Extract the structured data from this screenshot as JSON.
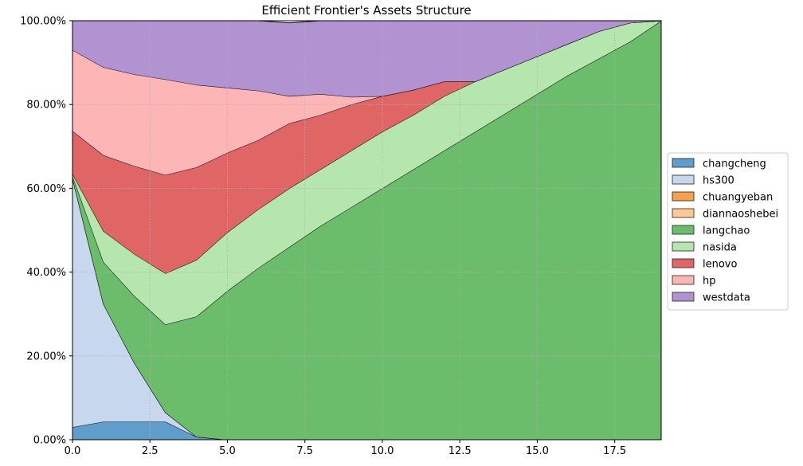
{
  "chart_data": {
    "type": "area",
    "stacked": true,
    "percent": true,
    "title": "Efficient Frontier's Assets Structure",
    "xlabel": "",
    "ylabel": "",
    "xlim": [
      0,
      19
    ],
    "ylim": [
      0,
      1
    ],
    "x_ticks": [
      0,
      2.5,
      5,
      7.5,
      10,
      12.5,
      15,
      17.5
    ],
    "x_tick_labels": [
      "0.0",
      "2.5",
      "5.0",
      "7.5",
      "10.0",
      "12.5",
      "15.0",
      "17.5"
    ],
    "y_ticks": [
      0,
      0.2,
      0.4,
      0.6,
      0.8,
      1.0
    ],
    "y_tick_labels": [
      "0.00%",
      "20.00%",
      "40.00%",
      "60.00%",
      "80.00%",
      "100.00%"
    ],
    "grid": true,
    "legend_position": "right",
    "x": [
      0,
      1,
      2,
      3,
      4,
      5,
      6,
      7,
      8,
      9,
      10,
      11,
      12,
      13,
      14,
      15,
      16,
      17,
      18,
      19
    ],
    "series": [
      {
        "name": "changcheng",
        "color": "#5f9ecb",
        "values": [
          0.03,
          0.043,
          0.043,
          0.043,
          0.007,
          0,
          0,
          0,
          0,
          0,
          0,
          0,
          0,
          0,
          0,
          0,
          0,
          0,
          0,
          0
        ]
      },
      {
        "name": "hs300",
        "color": "#c6d7ee",
        "values": [
          0.595,
          0.281,
          0.14,
          0.022,
          0,
          0,
          0,
          0,
          0,
          0,
          0,
          0,
          0,
          0,
          0,
          0,
          0,
          0,
          0,
          0
        ]
      },
      {
        "name": "chuangyeban",
        "color": "#f8a14d",
        "values": [
          0,
          0,
          0,
          0,
          0,
          0,
          0,
          0,
          0,
          0,
          0,
          0,
          0,
          0,
          0,
          0,
          0,
          0,
          0,
          0
        ]
      },
      {
        "name": "diannaoshebei",
        "color": "#fdc895",
        "values": [
          0,
          0,
          0,
          0,
          0,
          0,
          0,
          0,
          0,
          0,
          0,
          0,
          0,
          0,
          0,
          0,
          0,
          0,
          0,
          0
        ]
      },
      {
        "name": "langchao",
        "color": "#6bbd6b",
        "values": [
          0.005,
          0.1,
          0.16,
          0.21,
          0.287,
          0.355,
          0.41,
          0.46,
          0.51,
          0.555,
          0.6,
          0.645,
          0.69,
          0.735,
          0.78,
          0.825,
          0.87,
          0.91,
          0.95,
          1.0
        ]
      },
      {
        "name": "nasida",
        "color": "#b5e6ad",
        "values": [
          0.005,
          0.074,
          0.1,
          0.122,
          0.135,
          0.14,
          0.14,
          0.14,
          0.135,
          0.135,
          0.135,
          0.13,
          0.13,
          0.12,
          0.105,
          0.09,
          0.075,
          0.065,
          0.045,
          0
        ]
      },
      {
        "name": "lenovo",
        "color": "#e06666",
        "values": [
          0.102,
          0.181,
          0.21,
          0.235,
          0.221,
          0.19,
          0.165,
          0.155,
          0.13,
          0.11,
          0.085,
          0.06,
          0.035,
          0,
          0,
          0,
          0,
          0,
          0,
          0
        ]
      },
      {
        "name": "hp",
        "color": "#feb5b5",
        "values": [
          0.193,
          0.21,
          0.219,
          0.228,
          0.197,
          0.155,
          0.118,
          0.065,
          0.05,
          0.018,
          0,
          0,
          0,
          0,
          0,
          0,
          0,
          0,
          0,
          0
        ]
      },
      {
        "name": "westdata",
        "color": "#b093d0",
        "values": [
          0.07,
          0.111,
          0.128,
          0.14,
          0.153,
          0.16,
          0.167,
          0.175,
          0.175,
          0.182,
          0.18,
          0.165,
          0.145,
          0.145,
          0.115,
          0.085,
          0.055,
          0.025,
          0.005,
          0
        ]
      }
    ]
  }
}
